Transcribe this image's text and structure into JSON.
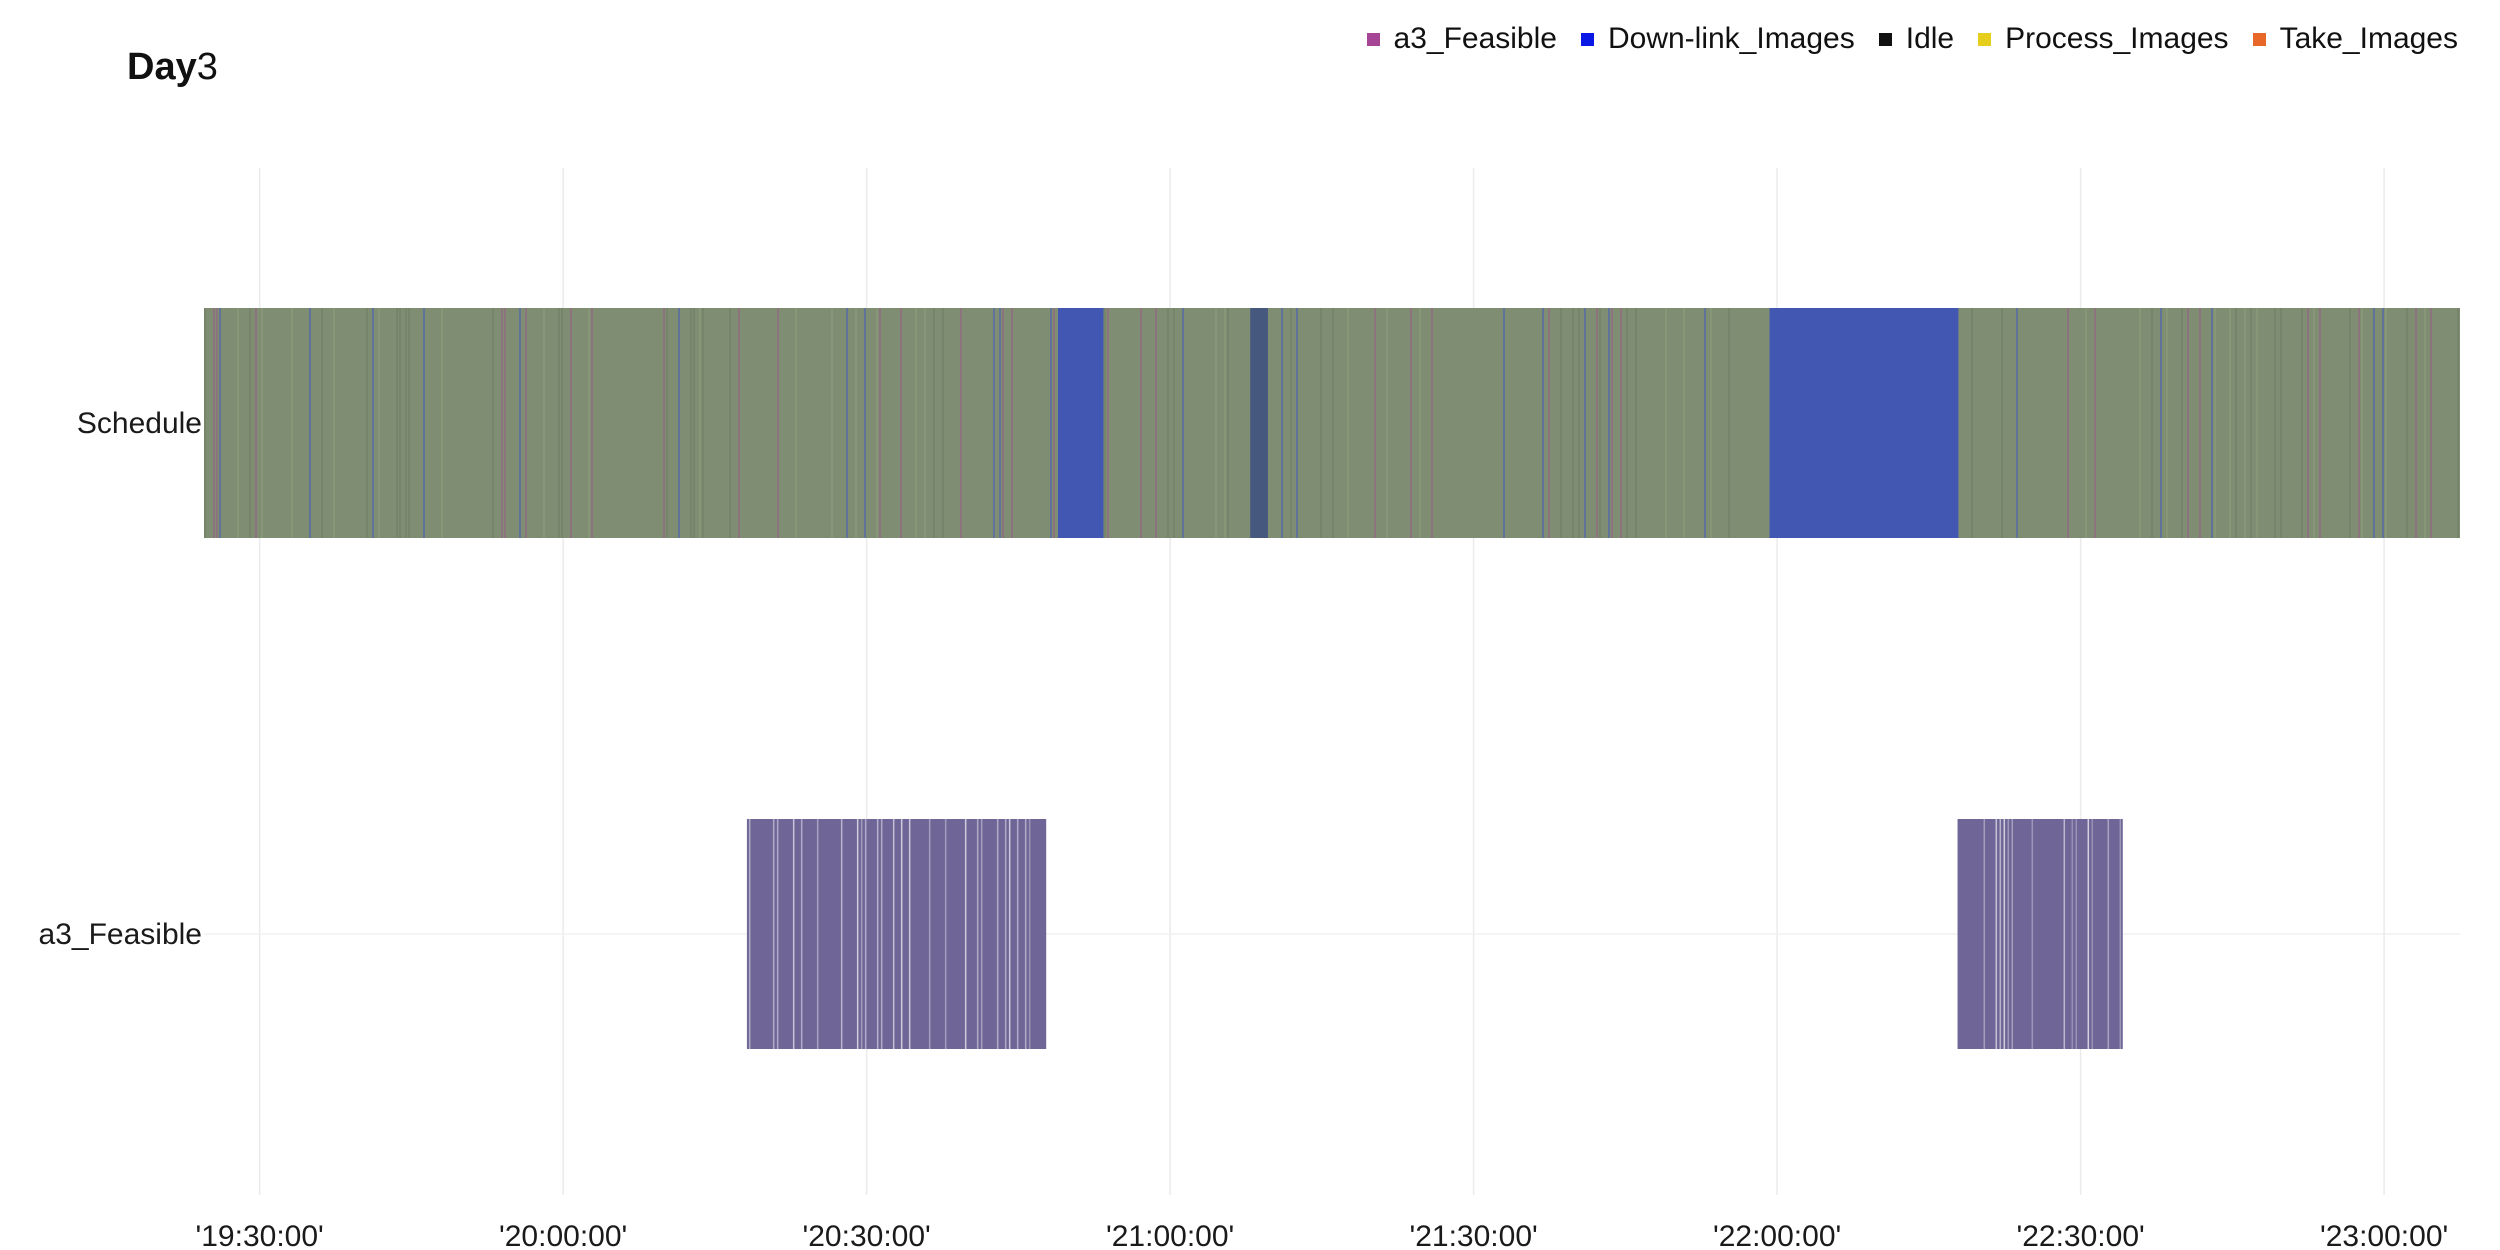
{
  "chart_data": {
    "type": "gantt",
    "title_bold": "Day",
    "title_rest": "3",
    "legend_position": "top-right",
    "legend": [
      {
        "name": "a3_Feasible",
        "color": "#a64596"
      },
      {
        "name": "Down-link_Images",
        "color": "#0a18e6"
      },
      {
        "name": "Idle",
        "color": "#111111"
      },
      {
        "name": "Process_Images",
        "color": "#e6cf1c"
      },
      {
        "name": "Take_Images",
        "color": "#e8682a"
      }
    ],
    "rows": [
      "Schedule",
      "a3_Feasible"
    ],
    "x_axis": {
      "type": "time",
      "range": [
        "19:24:30",
        "23:07:30"
      ],
      "ticks": [
        "'19:30:00'",
        "'20:00:00'",
        "'20:30:00'",
        "'21:00:00'",
        "'21:30:00'",
        "'22:00:00'",
        "'22:30:00'",
        "'23:00:00'"
      ],
      "grid": true
    },
    "schedule_fill_color": "#7f8d72",
    "a3_fill_color": "#6f6697",
    "schedule_downlink_blocks": [
      {
        "start": "20:48:55",
        "end": "20:53:25",
        "activity": "Down-link_Images"
      },
      {
        "start": "21:07:55",
        "end": "21:09:40",
        "activity": "Down-link_Images"
      },
      {
        "start": "21:59:15",
        "end": "22:17:55",
        "activity": "Down-link_Images"
      }
    ],
    "a3_feasible_windows": [
      {
        "start": "20:18:10",
        "end": "20:47:45"
      },
      {
        "start": "22:17:50",
        "end": "22:34:10"
      }
    ]
  }
}
